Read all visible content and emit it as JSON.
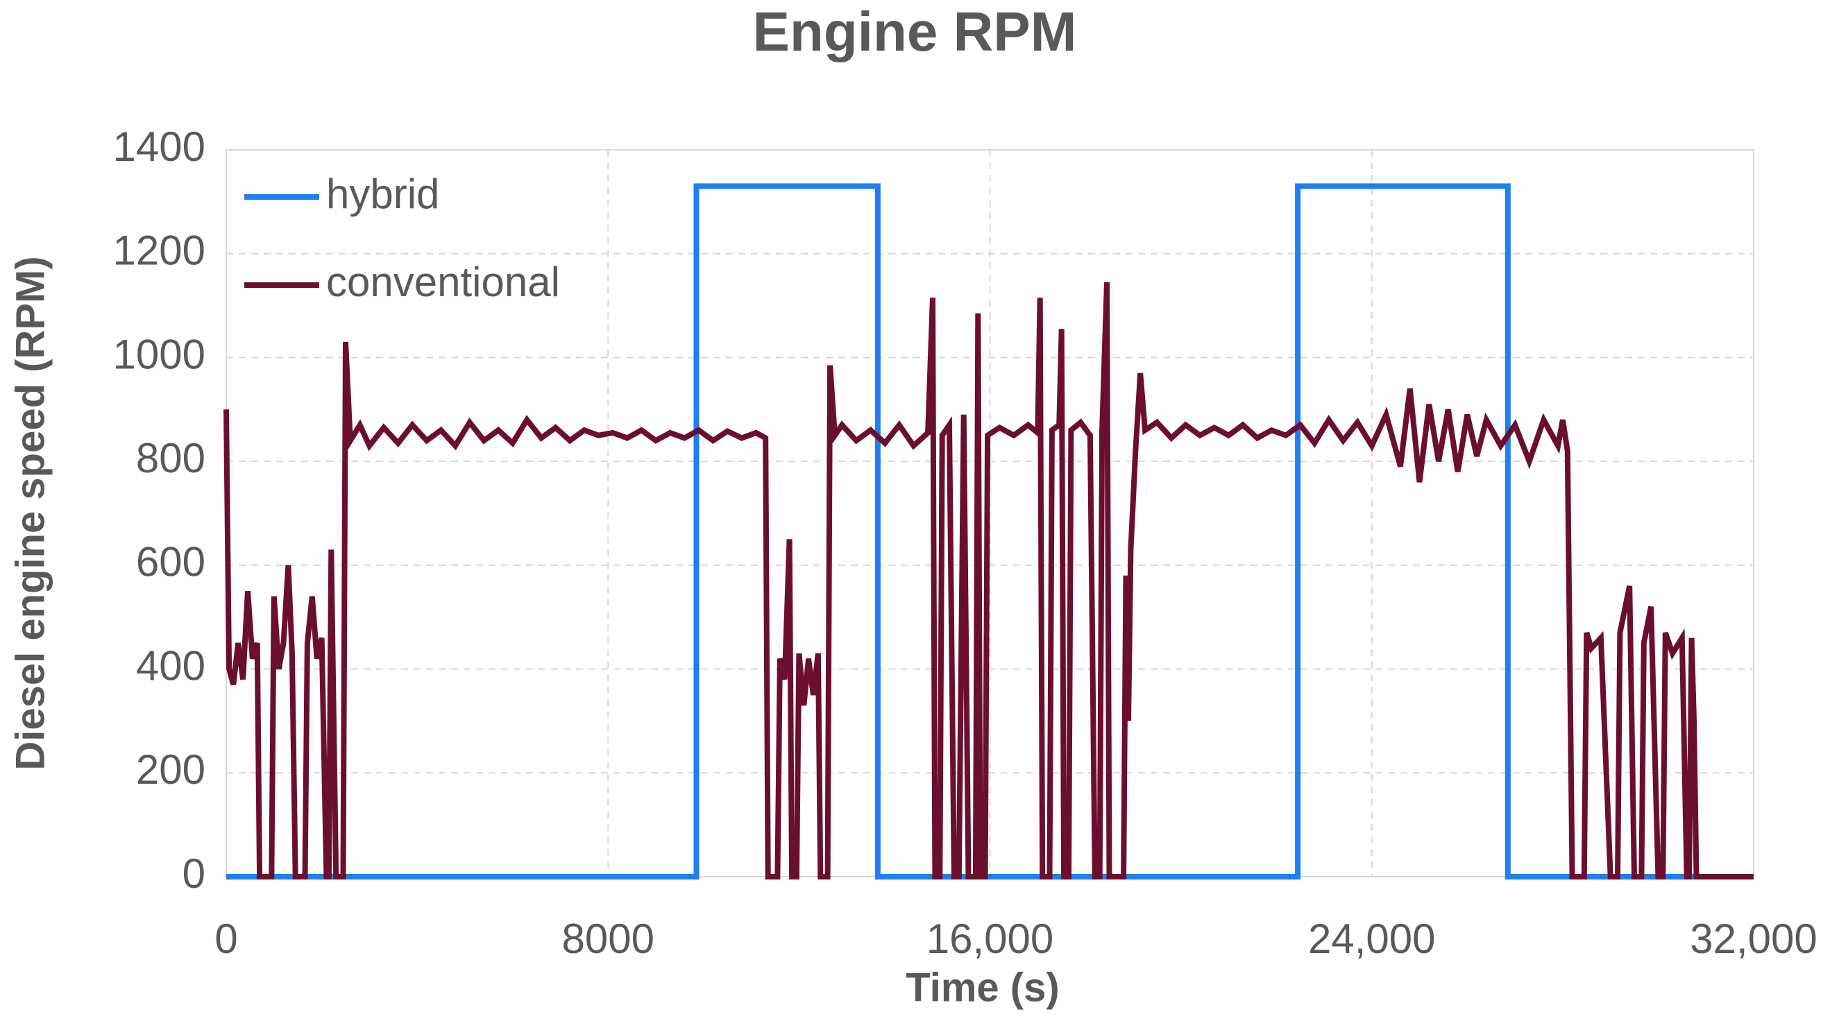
{
  "chart_data": {
    "type": "line",
    "title": "Engine RPM",
    "x_label": "Time (s)",
    "y_label": "Diesel engine speed (RPM)",
    "xlim": [
      0,
      32000
    ],
    "xticks": [
      0,
      8000,
      {
        "value": 16000,
        "label": "16,000"
      },
      {
        "value": 24000,
        "label": "24,000"
      },
      {
        "value": 32000,
        "label": "32,000"
      }
    ],
    "ylim": [
      0,
      1400
    ],
    "yticks": [
      0,
      200,
      400,
      600,
      800,
      1000,
      1200,
      1400
    ],
    "grid": true,
    "legend": "upper left",
    "series": [
      {
        "name": "hybrid",
        "color": "#1f7ff0",
        "x": [
          0,
          9850,
          9850,
          13650,
          13650,
          22450,
          22450,
          26850,
          26850,
          32000
        ],
        "values": [
          0,
          0,
          1330,
          1330,
          0,
          0,
          1330,
          1330,
          0,
          0
        ]
      },
      {
        "name": "conventional",
        "color": "#6b0f2e",
        "x": [
          0,
          60,
          150,
          250,
          350,
          450,
          550,
          650,
          700,
          950,
          1000,
          1100,
          1200,
          1300,
          1380,
          1450,
          1650,
          1700,
          1800,
          1900,
          2000,
          2100,
          2150,
          2200,
          2300,
          2450,
          2500,
          2600,
          2800,
          3000,
          3300,
          3600,
          3900,
          4200,
          4500,
          4800,
          5100,
          5400,
          5700,
          6000,
          6300,
          6600,
          6900,
          7200,
          7500,
          7800,
          8100,
          8400,
          8700,
          9000,
          9300,
          9600,
          9900,
          10200,
          10500,
          10800,
          11100,
          11300,
          11350,
          11550,
          11600,
          11700,
          11800,
          11850,
          11950,
          12000,
          12100,
          12200,
          12300,
          12400,
          12450,
          12600,
          12650,
          12750,
          12900,
          13200,
          13500,
          13800,
          14100,
          14400,
          14700,
          14800,
          14850,
          14950,
          15000,
          15150,
          15250,
          15350,
          15450,
          15550,
          15700,
          15750,
          15800,
          15900,
          15950,
          16200,
          16500,
          16800,
          17000,
          17050,
          17100,
          17250,
          17300,
          17450,
          17500,
          17550,
          17650,
          17700,
          17900,
          18100,
          18200,
          18300,
          18350,
          18450,
          18500,
          18800,
          18850,
          18900,
          18950,
          19050,
          19150,
          19250,
          19500,
          19800,
          20100,
          20400,
          20700,
          21000,
          21300,
          21600,
          21900,
          22200,
          22500,
          22800,
          23100,
          23400,
          23700,
          24000,
          24300,
          24600,
          24800,
          25000,
          25200,
          25400,
          25600,
          25800,
          26000,
          26200,
          26400,
          26700,
          27000,
          27300,
          27600,
          27900,
          28000,
          28100,
          28200,
          28450,
          28500,
          28600,
          28800,
          29000,
          29150,
          29200,
          29400,
          29500,
          29650,
          29700,
          29850,
          30000,
          30100,
          30150,
          30300,
          30500,
          30600,
          30650,
          30700,
          30750,
          30800,
          32000
        ],
        "values": [
          900,
          400,
          370,
          450,
          380,
          550,
          420,
          450,
          0,
          0,
          540,
          400,
          450,
          600,
          430,
          0,
          0,
          450,
          540,
          420,
          460,
          0,
          0,
          630,
          0,
          0,
          1030,
          840,
          870,
          830,
          865,
          835,
          870,
          840,
          860,
          830,
          875,
          840,
          860,
          835,
          880,
          845,
          865,
          840,
          860,
          850,
          855,
          845,
          860,
          840,
          855,
          845,
          860,
          840,
          858,
          845,
          855,
          845,
          0,
          0,
          420,
          380,
          650,
          0,
          0,
          430,
          330,
          420,
          350,
          430,
          0,
          0,
          985,
          850,
          870,
          840,
          860,
          835,
          870,
          830,
          855,
          1115,
          0,
          0,
          850,
          870,
          0,
          0,
          890,
          0,
          0,
          1085,
          0,
          0,
          850,
          865,
          850,
          870,
          855,
          1115,
          0,
          0,
          860,
          870,
          1055,
          0,
          0,
          860,
          875,
          850,
          0,
          0,
          860,
          1145,
          0,
          0,
          580,
          300,
          630,
          820,
          970,
          860,
          875,
          845,
          870,
          850,
          865,
          850,
          870,
          845,
          860,
          850,
          870,
          835,
          880,
          840,
          875,
          830,
          890,
          790,
          940,
          760,
          910,
          800,
          900,
          780,
          890,
          810,
          880,
          830,
          870,
          800,
          880,
          830,
          880,
          820,
          0,
          0,
          470,
          440,
          460,
          0,
          0,
          470,
          560,
          0,
          0,
          450,
          520,
          0,
          0,
          470,
          430,
          460,
          0,
          0,
          460,
          300,
          0,
          0
        ]
      }
    ]
  }
}
